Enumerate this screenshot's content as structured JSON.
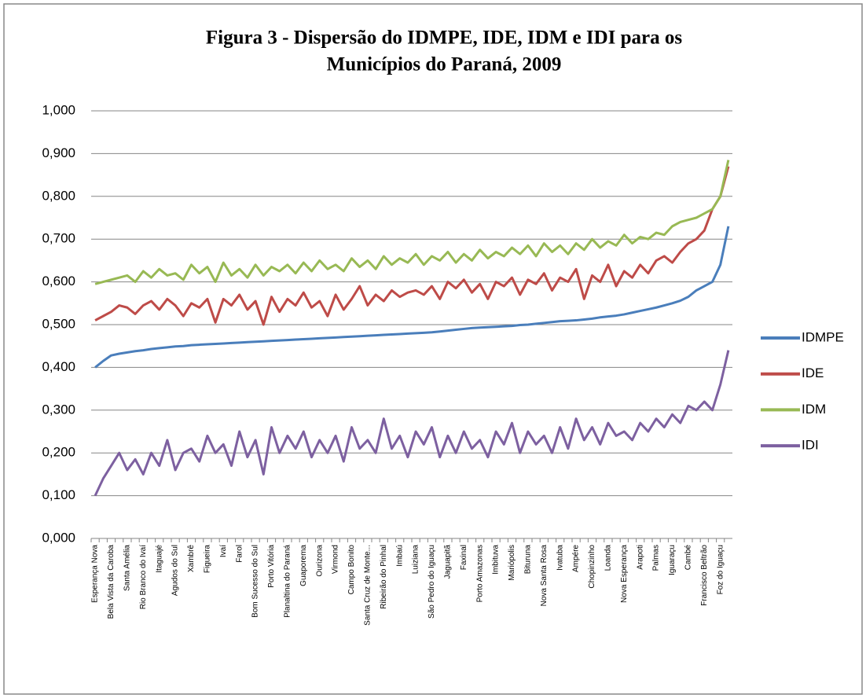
{
  "chart_data": {
    "type": "line",
    "title": "Figura 3 - Dispersão do IDMPE, IDE, IDM e IDI para os",
    "subtitle": "Municípios do Paraná, 2009",
    "categories": [
      "Esperança Nova",
      null,
      "Bela Vista da Caroba",
      null,
      "Santa Amélia",
      null,
      "Rio Branco do Ivaí",
      null,
      "Itaguajé",
      null,
      "Agudos do Sul",
      null,
      "Xambrê",
      null,
      "Figueira",
      null,
      "Ivaí",
      null,
      "Farol",
      null,
      "Bom Sucesso do Sul",
      null,
      "Porto Vitória",
      null,
      "Planaltina do Paraná",
      null,
      "Guaporema",
      null,
      "Ourizona",
      null,
      "Virmond",
      null,
      "Campo Bonito",
      null,
      "Santa Cruz de Monte...",
      null,
      "Ribeirão do Pinhal",
      null,
      "Imbaú",
      null,
      "Luiziana",
      null,
      "São Pedro do Iguaçu",
      null,
      "Jaguapitã",
      null,
      "Faxinal",
      null,
      "Porto Amazonas",
      null,
      "Imbituva",
      null,
      "Mariópolis",
      null,
      "Bituruna",
      null,
      "Nova Santa Rosa",
      null,
      "Ivatuba",
      null,
      "Ampére",
      null,
      "Chopinzinho",
      null,
      "Loanda",
      null,
      "Nova Esperança",
      null,
      "Arapoti",
      null,
      "Palmas",
      null,
      "Iguaraçu",
      null,
      "Cambé",
      null,
      "Francisco Beltrão",
      null,
      "Foz do Iguaçu",
      null
    ],
    "series": [
      {
        "name": "IDMPE",
        "color": "#4a7ebb",
        "values": [
          0.4,
          0.415,
          0.428,
          0.432,
          0.435,
          0.438,
          0.44,
          0.443,
          0.445,
          0.447,
          0.449,
          0.45,
          0.452,
          0.453,
          0.454,
          0.455,
          0.456,
          0.457,
          0.458,
          0.459,
          0.46,
          0.461,
          0.462,
          0.463,
          0.464,
          0.465,
          0.466,
          0.467,
          0.468,
          0.469,
          0.47,
          0.471,
          0.472,
          0.473,
          0.474,
          0.475,
          0.476,
          0.477,
          0.478,
          0.479,
          0.48,
          0.481,
          0.482,
          0.484,
          0.486,
          0.488,
          0.49,
          0.492,
          0.493,
          0.494,
          0.495,
          0.496,
          0.497,
          0.499,
          0.5,
          0.502,
          0.504,
          0.506,
          0.508,
          0.509,
          0.51,
          0.512,
          0.514,
          0.517,
          0.519,
          0.521,
          0.524,
          0.528,
          0.532,
          0.536,
          0.54,
          0.545,
          0.55,
          0.556,
          0.565,
          0.58,
          0.59,
          0.6,
          0.64,
          0.73
        ]
      },
      {
        "name": "IDE",
        "color": "#be4b48",
        "values": [
          0.51,
          0.52,
          0.53,
          0.545,
          0.54,
          0.525,
          0.545,
          0.555,
          0.535,
          0.56,
          0.545,
          0.52,
          0.55,
          0.54,
          0.56,
          0.505,
          0.56,
          0.545,
          0.57,
          0.535,
          0.555,
          0.5,
          0.565,
          0.53,
          0.56,
          0.545,
          0.575,
          0.54,
          0.555,
          0.52,
          0.57,
          0.535,
          0.56,
          0.59,
          0.545,
          0.57,
          0.555,
          0.58,
          0.565,
          0.575,
          0.58,
          0.57,
          0.59,
          0.56,
          0.6,
          0.585,
          0.605,
          0.575,
          0.595,
          0.56,
          0.6,
          0.59,
          0.61,
          0.57,
          0.605,
          0.595,
          0.62,
          0.58,
          0.61,
          0.6,
          0.63,
          0.56,
          0.615,
          0.6,
          0.64,
          0.59,
          0.625,
          0.61,
          0.64,
          0.62,
          0.65,
          0.66,
          0.645,
          0.67,
          0.69,
          0.7,
          0.72,
          0.77,
          0.8,
          0.87
        ]
      },
      {
        "name": "IDM",
        "color": "#98b954",
        "values": [
          0.595,
          0.6,
          0.605,
          0.61,
          0.615,
          0.6,
          0.625,
          0.61,
          0.63,
          0.615,
          0.62,
          0.605,
          0.64,
          0.62,
          0.635,
          0.6,
          0.645,
          0.615,
          0.63,
          0.61,
          0.64,
          0.615,
          0.635,
          0.625,
          0.64,
          0.62,
          0.645,
          0.625,
          0.65,
          0.63,
          0.64,
          0.625,
          0.655,
          0.635,
          0.65,
          0.63,
          0.66,
          0.64,
          0.655,
          0.645,
          0.665,
          0.64,
          0.66,
          0.65,
          0.67,
          0.645,
          0.665,
          0.65,
          0.675,
          0.655,
          0.67,
          0.66,
          0.68,
          0.665,
          0.685,
          0.66,
          0.69,
          0.67,
          0.685,
          0.665,
          0.69,
          0.675,
          0.7,
          0.68,
          0.695,
          0.685,
          0.71,
          0.69,
          0.705,
          0.7,
          0.715,
          0.71,
          0.73,
          0.74,
          0.745,
          0.75,
          0.76,
          0.77,
          0.8,
          0.885
        ]
      },
      {
        "name": "IDI",
        "color": "#7d60a0",
        "values": [
          0.1,
          0.14,
          0.17,
          0.2,
          0.16,
          0.185,
          0.15,
          0.2,
          0.17,
          0.23,
          0.16,
          0.2,
          0.21,
          0.18,
          0.24,
          0.2,
          0.22,
          0.17,
          0.25,
          0.19,
          0.23,
          0.15,
          0.26,
          0.2,
          0.24,
          0.21,
          0.25,
          0.19,
          0.23,
          0.2,
          0.24,
          0.18,
          0.26,
          0.21,
          0.23,
          0.2,
          0.28,
          0.21,
          0.24,
          0.19,
          0.25,
          0.22,
          0.26,
          0.19,
          0.24,
          0.2,
          0.25,
          0.21,
          0.23,
          0.19,
          0.25,
          0.22,
          0.27,
          0.2,
          0.25,
          0.22,
          0.24,
          0.2,
          0.26,
          0.21,
          0.28,
          0.23,
          0.26,
          0.22,
          0.27,
          0.24,
          0.25,
          0.23,
          0.27,
          0.25,
          0.28,
          0.26,
          0.29,
          0.27,
          0.31,
          0.3,
          0.32,
          0.3,
          0.36,
          0.44
        ]
      }
    ],
    "ylim": [
      0,
      1
    ],
    "yticks": [
      {
        "value": 0,
        "label": "0,000"
      },
      {
        "value": 0.1,
        "label": "0,100"
      },
      {
        "value": 0.2,
        "label": "0,200"
      },
      {
        "value": 0.3,
        "label": "0,300"
      },
      {
        "value": 0.4,
        "label": "0,400"
      },
      {
        "value": 0.5,
        "label": "0,500"
      },
      {
        "value": 0.6,
        "label": "0,600"
      },
      {
        "value": 0.7,
        "label": "0,700"
      },
      {
        "value": 0.8,
        "label": "0,800"
      },
      {
        "value": 0.9,
        "label": "0,900"
      },
      {
        "value": 1,
        "label": "1,000"
      }
    ],
    "grid": true,
    "legend": "right"
  }
}
